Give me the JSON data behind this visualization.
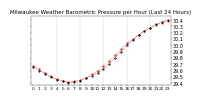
{
  "title": "Milwaukee Weather Barometric Pressure per Hour (Last 24 Hours)",
  "hours": [
    0,
    1,
    2,
    3,
    4,
    5,
    6,
    7,
    8,
    9,
    10,
    11,
    12,
    13,
    14,
    15,
    16,
    17,
    18,
    19,
    20,
    21,
    22,
    23
  ],
  "pressure": [
    29.65,
    29.6,
    29.55,
    29.5,
    29.46,
    29.43,
    29.41,
    29.42,
    29.44,
    29.48,
    29.52,
    29.57,
    29.63,
    29.71,
    29.8,
    29.9,
    30.0,
    30.08,
    30.16,
    30.22,
    30.28,
    30.33,
    30.37,
    30.4
  ],
  "trend": [
    29.68,
    29.62,
    29.56,
    29.51,
    29.47,
    29.44,
    29.42,
    29.43,
    29.45,
    29.49,
    29.54,
    29.6,
    29.67,
    29.75,
    29.84,
    29.94,
    30.03,
    30.1,
    30.17,
    30.23,
    30.28,
    30.32,
    30.36,
    30.39
  ],
  "ylim": [
    29.37,
    30.47
  ],
  "yticks": [
    29.4,
    29.5,
    29.6,
    29.7,
    29.8,
    29.9,
    30.0,
    30.1,
    30.2,
    30.3,
    30.4
  ],
  "ytick_labels": [
    "29.4",
    "29.5",
    "29.6",
    "29.7",
    "29.8",
    "29.9",
    "30.0",
    "30.1",
    "30.2",
    "30.3",
    "30.4"
  ],
  "ylabel_fontsize": 3.5,
  "xlabel_fontsize": 3.2,
  "title_fontsize": 4.0,
  "line_color": "#000000",
  "trend_color": "#ff0000",
  "grid_color": "#999999",
  "bg_color": "#ffffff",
  "vline_positions": [
    4,
    8,
    12,
    16,
    20
  ],
  "hour_labels": [
    "0",
    "1",
    "2",
    "3",
    "4",
    "5",
    "6",
    "7",
    "8",
    "9",
    "10",
    "11",
    "12",
    "13",
    "14",
    "15",
    "16",
    "17",
    "18",
    "19",
    "20",
    "21",
    "22",
    "23"
  ]
}
